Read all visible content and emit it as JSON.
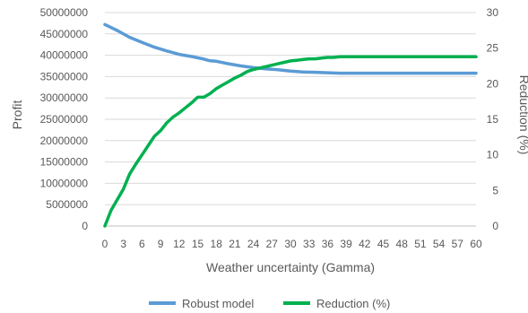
{
  "chart_data": {
    "type": "line",
    "title": "",
    "xlabel": "Weather uncertainty (Gamma)",
    "ylabel": "Profit",
    "y2label": "Reduction (%)",
    "xlim": [
      0,
      60
    ],
    "ylim": [
      0,
      50000000
    ],
    "y2lim": [
      0,
      30
    ],
    "x_ticks": [
      "0",
      "3",
      "6",
      "9",
      "12",
      "15",
      "18",
      "21",
      "24",
      "27",
      "30",
      "33",
      "36",
      "39",
      "42",
      "45",
      "48",
      "51",
      "54",
      "57",
      "60"
    ],
    "y_ticks": [
      "0",
      "5000000",
      "10000000",
      "15000000",
      "20000000",
      "25000000",
      "30000000",
      "35000000",
      "40000000",
      "45000000",
      "50000000"
    ],
    "y2_ticks": [
      "0",
      "5",
      "10",
      "15",
      "20",
      "25",
      "30"
    ],
    "grid": true,
    "legend_position": "bottom",
    "series": [
      {
        "name": "Robust model",
        "axis": "left",
        "color": "#5B9BD5",
        "x": [
          0,
          2,
          4,
          6,
          8,
          10,
          12,
          14,
          16,
          17,
          18,
          20,
          22,
          24,
          26,
          28,
          30,
          32,
          34,
          36,
          38,
          40,
          45,
          50,
          55,
          60
        ],
        "values": [
          47200000,
          45800000,
          44200000,
          43000000,
          41900000,
          41000000,
          40200000,
          39700000,
          39100000,
          38700000,
          38600000,
          38000000,
          37500000,
          37100000,
          36800000,
          36600000,
          36300000,
          36100000,
          36000000,
          35900000,
          35800000,
          35800000,
          35800000,
          35800000,
          35800000,
          35800000
        ]
      },
      {
        "name": "Reduction (%)",
        "axis": "right",
        "color": "#00B050",
        "x": [
          0,
          1,
          2,
          3,
          4,
          5,
          6,
          7,
          8,
          9,
          10,
          11,
          12,
          13,
          14,
          15,
          16,
          17,
          18,
          19,
          20,
          21,
          22,
          23,
          24,
          25,
          26,
          27,
          28,
          29,
          30,
          31,
          32,
          33,
          34,
          35,
          36,
          37,
          38,
          40,
          45,
          50,
          55,
          60
        ],
        "values": [
          0,
          2.2,
          3.7,
          5.2,
          7.3,
          8.7,
          10.0,
          11.3,
          12.6,
          13.4,
          14.5,
          15.3,
          15.9,
          16.6,
          17.3,
          18.1,
          18.1,
          18.6,
          19.3,
          19.8,
          20.3,
          20.8,
          21.2,
          21.7,
          22.0,
          22.2,
          22.4,
          22.6,
          22.8,
          23.0,
          23.2,
          23.3,
          23.4,
          23.5,
          23.5,
          23.6,
          23.7,
          23.7,
          23.8,
          23.8,
          23.8,
          23.8,
          23.8,
          23.8
        ]
      }
    ]
  }
}
